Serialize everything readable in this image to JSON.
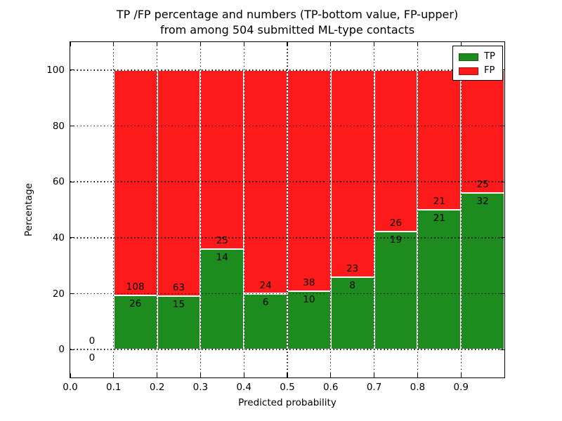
{
  "title": {
    "line1": "TP /FP percentage and numbers (TP-bottom value, FP-upper)",
    "line2": "from among 504 submitted ML-type contacts"
  },
  "axes": {
    "xlabel": "Predicted probability",
    "ylabel": "Percentage",
    "x_tick_labels": [
      "0.0",
      "0.1",
      "0.2",
      "0.3",
      "0.4",
      "0.5",
      "0.6",
      "0.7",
      "0.8",
      "0.9"
    ],
    "x_tick_values": [
      0.0,
      0.1,
      0.2,
      0.3,
      0.4,
      0.5,
      0.6,
      0.7,
      0.8,
      0.9
    ],
    "y_tick_labels": [
      "0",
      "20",
      "40",
      "60",
      "80",
      "100"
    ],
    "y_tick_values": [
      0,
      20,
      40,
      60,
      80,
      100
    ]
  },
  "legend": {
    "items": [
      {
        "label": "TP",
        "color": "#1e8b1e"
      },
      {
        "label": "FP",
        "color": "#fc1a1a"
      }
    ]
  },
  "colors": {
    "tp_green": "#1e8b1e",
    "fp_red": "#fc1a1a",
    "grid": "#000000",
    "bar_edge": "#ffffff"
  },
  "chart_data": {
    "type": "bar",
    "stacked": true,
    "title": "TP /FP percentage and numbers (TP-bottom value, FP-upper)\nfrom among 504 submitted ML-type contacts",
    "xlabel": "Predicted probability",
    "ylabel": "Percentage",
    "xlim": [
      0.0,
      1.0
    ],
    "ylim": [
      -10,
      110
    ],
    "grid": "dotted black, drawn above bars",
    "legend_position": "upper right",
    "total_contacts": 504,
    "bin_edges": [
      0.0,
      0.1,
      0.2,
      0.3,
      0.4,
      0.5,
      0.6,
      0.7,
      0.8,
      0.9,
      1.0
    ],
    "series": [
      {
        "name": "TP",
        "color": "#1e8b1e",
        "counts": [
          0,
          26,
          15,
          14,
          6,
          10,
          8,
          19,
          21,
          32
        ],
        "percent_heights": [
          0,
          19.4,
          19.23,
          35.9,
          20.0,
          20.83,
          25.81,
          42.22,
          50.0,
          56.14
        ]
      },
      {
        "name": "FP",
        "color": "#fc1a1a",
        "counts": [
          0,
          108,
          63,
          25,
          24,
          38,
          23,
          26,
          21,
          25
        ],
        "percent_heights": [
          0,
          80.6,
          80.77,
          64.1,
          80.0,
          79.17,
          74.19,
          57.78,
          50.0,
          43.86
        ]
      }
    ],
    "value_label_note": "TP count shown below segment boundary, FP count above; stacked bars sum to 100%"
  }
}
